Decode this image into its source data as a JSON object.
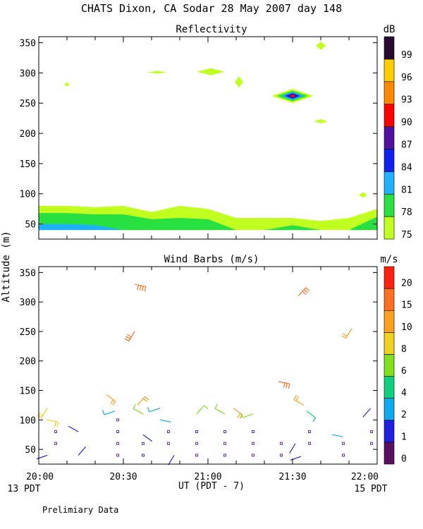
{
  "page": {
    "title": "CHATS Dixon, CA  Sodar  28 May 2007  day 148",
    "ylabel": "Altitude (m)",
    "xlabel": "UT  (PDT - 7)",
    "x_left_note": "13 PDT",
    "x_right_note": "15 PDT",
    "footer": "Prelimiary Data"
  },
  "x_ticks": [
    "20:00",
    "20:30",
    "21:00",
    "21:30",
    "22:00"
  ],
  "chart_data": [
    {
      "type": "heatmap",
      "title": "Reflectivity",
      "colorbar_title": "dB",
      "x_range_ut": [
        "20:00",
        "22:00"
      ],
      "ylim": [
        25,
        360
      ],
      "yticks": [
        50,
        100,
        150,
        200,
        250,
        300,
        350
      ],
      "colorbar": {
        "labels": [
          "75",
          "78",
          "81",
          "84",
          "87",
          "90",
          "93",
          "96",
          "99"
        ],
        "colors": [
          "#c0ff20",
          "#28e040",
          "#20b0ff",
          "#1020f0",
          "#5010a0",
          "#ff0000",
          "#ff8800",
          "#ffcc00",
          "#2a0a30"
        ]
      },
      "profile_x_ut": [
        "20:00",
        "20:10",
        "20:20",
        "20:30",
        "20:40",
        "20:50",
        "21:00",
        "21:10",
        "21:20",
        "21:30",
        "21:40",
        "21:50",
        "22:00"
      ],
      "layers": [
        {
          "level_db": 75,
          "top_m": [
            80,
            80,
            78,
            80,
            70,
            80,
            75,
            60,
            60,
            60,
            55,
            60,
            75
          ]
        },
        {
          "level_db": 78,
          "top_m": [
            68,
            68,
            66,
            66,
            58,
            60,
            58,
            40,
            40,
            48,
            40,
            40,
            62
          ]
        },
        {
          "level_db": 81,
          "top_m": [
            50,
            50,
            48,
            40,
            40,
            40,
            40,
            40,
            40,
            40,
            40,
            40,
            40
          ]
        }
      ],
      "patches": [
        {
          "x_ut": "20:10",
          "y_m": 281,
          "level_db": 75
        },
        {
          "x_ut": "20:42",
          "y_m": 301,
          "level_db": 75
        },
        {
          "x_ut": "21:01",
          "y_m": 302,
          "level_db": 75
        },
        {
          "x_ut": "21:11",
          "y_m": 285,
          "level_db": 75
        },
        {
          "x_ut": "21:40",
          "y_m": 220,
          "level_db": 75
        },
        {
          "x_ut": "21:40",
          "y_m": 345,
          "level_db": 75
        },
        {
          "x_ut": "21:55",
          "y_m": 98,
          "level_db": 75
        },
        {
          "x_ut": "21:30",
          "y_m": 262,
          "level_db": 99
        }
      ]
    },
    {
      "type": "scatter",
      "title": "Wind Barbs (m/s)",
      "colorbar_title": "m/s",
      "x_range_ut": [
        "20:00",
        "22:00"
      ],
      "ylim": [
        25,
        360
      ],
      "yticks": [
        50,
        100,
        150,
        200,
        250,
        300,
        350
      ],
      "colorbar": {
        "labels": [
          "0",
          "1",
          "2",
          "4",
          "6",
          "8",
          "10",
          "15",
          "20"
        ],
        "colors": [
          "#5a1060",
          "#2020e0",
          "#10a8f0",
          "#10d080",
          "#80e020",
          "#f0d020",
          "#ffa020",
          "#ff7020",
          "#ff2010"
        ]
      },
      "barbs": [
        {
          "x_min": 3,
          "y_m": 40,
          "speed_ms": 1.0
        },
        {
          "x_min": 3,
          "y_m": 100,
          "speed_ms": 9.0
        },
        {
          "x_min": 3,
          "y_m": 120,
          "speed_ms": 9.0
        },
        {
          "x_min": 14,
          "y_m": 40,
          "speed_ms": 1.0
        },
        {
          "x_min": 14,
          "y_m": 80,
          "speed_ms": 1.0
        },
        {
          "x_min": 24,
          "y_m": 143,
          "speed_ms": 12.0
        },
        {
          "x_min": 27,
          "y_m": 115,
          "speed_ms": 2.5
        },
        {
          "x_min": 34,
          "y_m": 330,
          "speed_ms": 18.0
        },
        {
          "x_min": 34,
          "y_m": 250,
          "speed_ms": 17.0
        },
        {
          "x_min": 35,
          "y_m": 125,
          "speed_ms": 11.0
        },
        {
          "x_min": 37,
          "y_m": 110,
          "speed_ms": 7.0
        },
        {
          "x_min": 37,
          "y_m": 75,
          "speed_ms": 1.0
        },
        {
          "x_min": 43,
          "y_m": 120,
          "speed_ms": 3.5
        },
        {
          "x_min": 43,
          "y_m": 100,
          "speed_ms": 2.0
        },
        {
          "x_min": 48,
          "y_m": 40,
          "speed_ms": 1.0
        },
        {
          "x_min": 56,
          "y_m": 110,
          "speed_ms": 6.0
        },
        {
          "x_min": 66,
          "y_m": 110,
          "speed_ms": 6.0
        },
        {
          "x_min": 69,
          "y_m": 120,
          "speed_ms": 10.0
        },
        {
          "x_min": 76,
          "y_m": 110,
          "speed_ms": 6.0
        },
        {
          "x_min": 85,
          "y_m": 165,
          "speed_ms": 17.0
        },
        {
          "x_min": 91,
          "y_m": 60,
          "speed_ms": 1.0
        },
        {
          "x_min": 92,
          "y_m": 310,
          "speed_ms": 15.0
        },
        {
          "x_min": 94,
          "y_m": 125,
          "speed_ms": 10.0
        },
        {
          "x_min": 95,
          "y_m": 115,
          "speed_ms": 4.0
        },
        {
          "x_min": 93,
          "y_m": 38,
          "speed_ms": 1.0
        },
        {
          "x_min": 104,
          "y_m": 75,
          "speed_ms": 2.0
        },
        {
          "x_min": 111,
          "y_m": 255,
          "speed_ms": 12.0
        },
        {
          "x_min": 115,
          "y_m": 105,
          "speed_ms": 1.0
        }
      ],
      "calm_points": [
        {
          "x_min": 6,
          "y_m": 60
        },
        {
          "x_min": 6,
          "y_m": 80
        },
        {
          "x_min": 28,
          "y_m": 40
        },
        {
          "x_min": 28,
          "y_m": 60
        },
        {
          "x_min": 28,
          "y_m": 80
        },
        {
          "x_min": 28,
          "y_m": 100
        },
        {
          "x_min": 37,
          "y_m": 40
        },
        {
          "x_min": 37,
          "y_m": 60
        },
        {
          "x_min": 46,
          "y_m": 60
        },
        {
          "x_min": 46,
          "y_m": 80
        },
        {
          "x_min": 56,
          "y_m": 40
        },
        {
          "x_min": 56,
          "y_m": 60
        },
        {
          "x_min": 56,
          "y_m": 80
        },
        {
          "x_min": 66,
          "y_m": 40
        },
        {
          "x_min": 66,
          "y_m": 60
        },
        {
          "x_min": 66,
          "y_m": 80
        },
        {
          "x_min": 76,
          "y_m": 40
        },
        {
          "x_min": 76,
          "y_m": 60
        },
        {
          "x_min": 76,
          "y_m": 80
        },
        {
          "x_min": 86,
          "y_m": 40
        },
        {
          "x_min": 86,
          "y_m": 60
        },
        {
          "x_min": 96,
          "y_m": 60
        },
        {
          "x_min": 96,
          "y_m": 80
        },
        {
          "x_min": 108,
          "y_m": 40
        },
        {
          "x_min": 108,
          "y_m": 60
        },
        {
          "x_min": 118,
          "y_m": 60
        },
        {
          "x_min": 118,
          "y_m": 80
        }
      ]
    }
  ]
}
